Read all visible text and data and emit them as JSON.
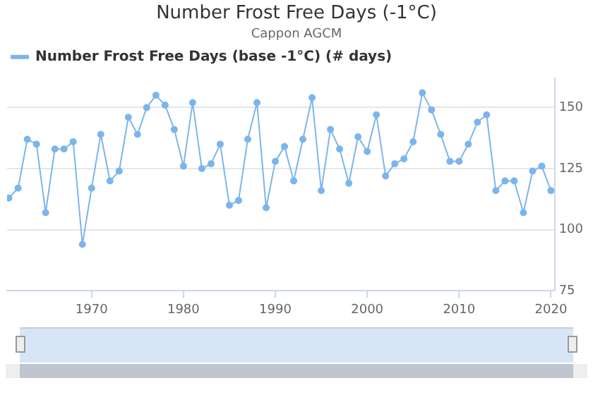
{
  "chart_data": {
    "type": "line",
    "title": "Number Frost Free Days (-1°C)",
    "subtitle": "Cappon AGCM",
    "x": [
      1961,
      1962,
      1963,
      1964,
      1965,
      1966,
      1967,
      1968,
      1969,
      1970,
      1971,
      1972,
      1973,
      1974,
      1975,
      1976,
      1977,
      1978,
      1979,
      1980,
      1981,
      1982,
      1983,
      1984,
      1985,
      1986,
      1987,
      1988,
      1989,
      1990,
      1991,
      1992,
      1993,
      1994,
      1995,
      1996,
      1997,
      1998,
      1999,
      2000,
      2001,
      2002,
      2003,
      2004,
      2005,
      2006,
      2007,
      2008,
      2009,
      2010,
      2011,
      2012,
      2013,
      2014,
      2015,
      2016,
      2017,
      2018,
      2019,
      2020
    ],
    "series": [
      {
        "name": "Number Frost Free Days (base -1°C) (# days)",
        "color": "#7cb5ec",
        "values": [
          113,
          117,
          137,
          135,
          107,
          133,
          133,
          136,
          94,
          117,
          139,
          120,
          124,
          146,
          139,
          150,
          155,
          151,
          141,
          126,
          152,
          125,
          127,
          135,
          110,
          112,
          137,
          152,
          109,
          128,
          134,
          120,
          137,
          154,
          116,
          141,
          133,
          119,
          138,
          132,
          147,
          122,
          127,
          129,
          136,
          156,
          149,
          139,
          128,
          128,
          135,
          144,
          147,
          116,
          120,
          120,
          107,
          124,
          126,
          116
        ]
      }
    ],
    "xlim": [
      1960.8,
      2020.4
    ],
    "xticks": [
      1970,
      1980,
      1990,
      2000,
      2010,
      2020
    ],
    "ylim": [
      75,
      162
    ],
    "yticks": [
      75,
      100,
      125,
      150
    ],
    "grid": "y",
    "legend": "top left",
    "marker": "circle",
    "line_style": "solid"
  }
}
